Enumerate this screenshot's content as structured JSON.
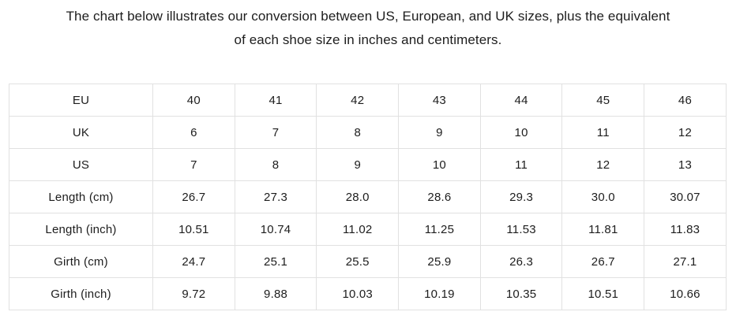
{
  "title": {
    "line1": "The chart below illustrates our conversion between US, European, and UK sizes, plus the equivalent",
    "line2": "of each shoe size in inches and centimeters."
  },
  "colors": {
    "text": "#1d1d1d",
    "table_border": "#e1e1e1",
    "background": "#ffffff"
  },
  "table": {
    "rows": [
      {
        "label": "EU",
        "values": [
          "40",
          "41",
          "42",
          "43",
          "44",
          "45",
          "46"
        ]
      },
      {
        "label": "UK",
        "values": [
          "6",
          "7",
          "8",
          "9",
          "10",
          "11",
          "12"
        ]
      },
      {
        "label": "US",
        "values": [
          "7",
          "8",
          "9",
          "10",
          "11",
          "12",
          "13"
        ]
      },
      {
        "label": "Length (cm)",
        "values": [
          "26.7",
          "27.3",
          "28.0",
          "28.6",
          "29.3",
          "30.0",
          "30.07"
        ]
      },
      {
        "label": "Length (inch)",
        "values": [
          "10.51",
          "10.74",
          "11.02",
          "11.25",
          "11.53",
          "11.81",
          "11.83"
        ]
      },
      {
        "label": "Girth (cm)",
        "values": [
          "24.7",
          "25.1",
          "25.5",
          "25.9",
          "26.3",
          "26.7",
          "27.1"
        ]
      },
      {
        "label": "Girth (inch)",
        "values": [
          "9.72",
          "9.88",
          "10.03",
          "10.19",
          "10.35",
          "10.51",
          "10.66"
        ]
      }
    ]
  },
  "chart_data": {
    "type": "table",
    "row_headers": [
      "EU",
      "UK",
      "US",
      "Length (cm)",
      "Length (inch)",
      "Girth (cm)",
      "Girth (inch)"
    ],
    "rows": [
      [
        40,
        41,
        42,
        43,
        44,
        45,
        46
      ],
      [
        6,
        7,
        8,
        9,
        10,
        11,
        12
      ],
      [
        7,
        8,
        9,
        10,
        11,
        12,
        13
      ],
      [
        26.7,
        27.3,
        28.0,
        28.6,
        29.3,
        30.0,
        30.07
      ],
      [
        10.51,
        10.74,
        11.02,
        11.25,
        11.53,
        11.81,
        11.83
      ],
      [
        24.7,
        25.1,
        25.5,
        25.9,
        26.3,
        26.7,
        27.1
      ],
      [
        9.72,
        9.88,
        10.03,
        10.19,
        10.35,
        10.51,
        10.66
      ]
    ],
    "title": "Shoe size conversion chart (US / EU / UK with length and girth in cm and inches)"
  }
}
